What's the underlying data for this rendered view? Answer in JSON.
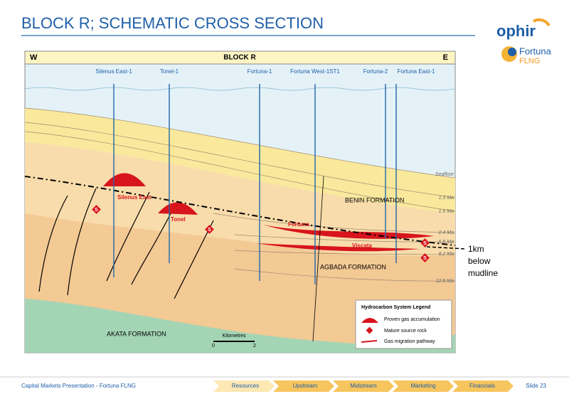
{
  "header": {
    "title": "BLOCK R; SCHEMATIC CROSS SECTION",
    "logo": {
      "brand": "ophir",
      "product": "Fortuna",
      "product_sub": "FLNG"
    }
  },
  "section": {
    "west": "W",
    "block": "BLOCK R",
    "east": "E",
    "wells": [
      "Silenus East-1",
      "Tonel-1",
      "Fortuna-1",
      "Fortuna West-1ST1",
      "Fortuna-2",
      "Fortuna East-1"
    ],
    "horizons": [
      "Seafloor",
      "1.3 Ma",
      "1.6 Ma",
      "2.4 Ma",
      "5.5 Ma",
      "8.2 Ma",
      "12.5 Ma"
    ],
    "formations": [
      "BENIN FORMATION",
      "AGBADA FORMATION",
      "AKATA FORMATION"
    ],
    "accumulations": [
      "Silenus East",
      "Tonel",
      "Fortuna",
      "Viscata"
    ],
    "source_marker": "S",
    "scale": {
      "title": "Kilometres",
      "start": "0",
      "end": "2"
    },
    "legend": {
      "title": "Hydrocarbon System Legend",
      "items": [
        "Proven gas accumulation",
        "Mature source rock",
        "Gas migration pathway"
      ]
    }
  },
  "annotation": "1km below mudline",
  "footer": {
    "caption": "Capital Markets Presentation - Fortuna FLNG",
    "nav": [
      "Resources",
      "Upstream",
      "Midstream",
      "Marketing",
      "Financials"
    ],
    "slide": "Slide 23"
  }
}
